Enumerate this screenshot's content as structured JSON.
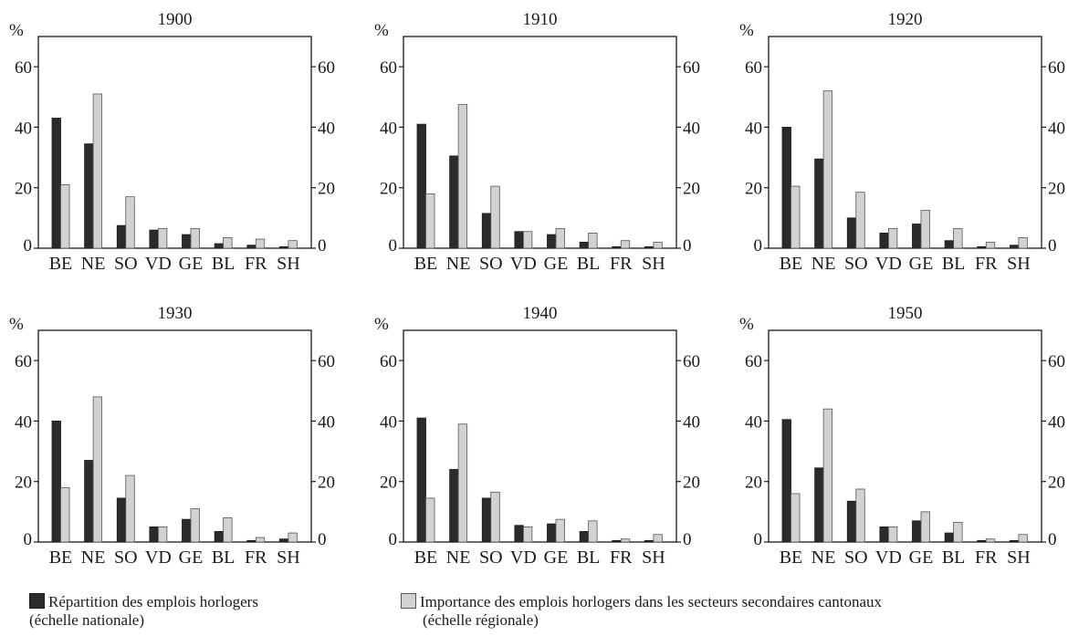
{
  "chart_data": [
    {
      "type": "bar",
      "title": "1900",
      "categories": [
        "BE",
        "NE",
        "SO",
        "VD",
        "GE",
        "BL",
        "FR",
        "SH"
      ],
      "y_left_label": "%",
      "ylim": [
        0,
        70
      ],
      "yticks": [
        0,
        20,
        40,
        60
      ],
      "series": [
        {
          "name": "Répartition des emplois horlogers (échelle nationale)",
          "color": "#2b2b2b",
          "values": [
            43,
            34.5,
            7.5,
            6,
            4.5,
            1.5,
            1,
            0.5
          ]
        },
        {
          "name": "Importance des emplois horlogers dans les secteurs secondaires cantonaux (échelle régionale)",
          "color": "#d2d2d2",
          "values": [
            21,
            51,
            17,
            6.5,
            6.5,
            3.5,
            3,
            2.5
          ]
        }
      ]
    },
    {
      "type": "bar",
      "title": "1910",
      "categories": [
        "BE",
        "NE",
        "SO",
        "VD",
        "GE",
        "BL",
        "FR",
        "SH"
      ],
      "y_left_label": "%",
      "ylim": [
        0,
        70
      ],
      "yticks": [
        0,
        20,
        40,
        60
      ],
      "series": [
        {
          "name": "Répartition des emplois horlogers (échelle nationale)",
          "color": "#2b2b2b",
          "values": [
            41,
            30.5,
            11.5,
            5.5,
            4.5,
            2,
            0.5,
            0.5
          ]
        },
        {
          "name": "Importance des emplois horlogers dans les secteurs secondaires cantonaux (échelle régionale)",
          "color": "#d2d2d2",
          "values": [
            18,
            47.5,
            20.5,
            5.5,
            6.5,
            5,
            2.5,
            2
          ]
        }
      ]
    },
    {
      "type": "bar",
      "title": "1920",
      "categories": [
        "BE",
        "NE",
        "SO",
        "VD",
        "GE",
        "BL",
        "FR",
        "SH"
      ],
      "y_left_label": "%",
      "ylim": [
        0,
        70
      ],
      "yticks": [
        0,
        20,
        40,
        60
      ],
      "series": [
        {
          "name": "Répartition des emplois horlogers (échelle nationale)",
          "color": "#2b2b2b",
          "values": [
            40,
            29.5,
            10,
            5,
            8,
            2.5,
            0.5,
            1
          ]
        },
        {
          "name": "Importance des emplois horlogers dans les secteurs secondaires cantonaux (échelle régionale)",
          "color": "#d2d2d2",
          "values": [
            20.5,
            52,
            18.5,
            6.5,
            12.5,
            6.5,
            2,
            3.5
          ]
        }
      ]
    },
    {
      "type": "bar",
      "title": "1930",
      "categories": [
        "BE",
        "NE",
        "SO",
        "VD",
        "GE",
        "BL",
        "FR",
        "SH"
      ],
      "y_left_label": "%",
      "ylim": [
        0,
        70
      ],
      "yticks": [
        0,
        20,
        40,
        60
      ],
      "series": [
        {
          "name": "Répartition des emplois horlogers (échelle nationale)",
          "color": "#2b2b2b",
          "values": [
            40,
            27,
            14.5,
            5,
            7.5,
            3.5,
            0.5,
            1
          ]
        },
        {
          "name": "Importance des emplois horlogers dans les secteurs secondaires cantonaux (échelle régionale)",
          "color": "#d2d2d2",
          "values": [
            18,
            48,
            22,
            5,
            11,
            8,
            1.5,
            3
          ]
        }
      ]
    },
    {
      "type": "bar",
      "title": "1940",
      "categories": [
        "BE",
        "NE",
        "SO",
        "VD",
        "GE",
        "BL",
        "FR",
        "SH"
      ],
      "y_left_label": "%",
      "ylim": [
        0,
        70
      ],
      "yticks": [
        0,
        20,
        40,
        60
      ],
      "series": [
        {
          "name": "Répartition des emplois horlogers (échelle nationale)",
          "color": "#2b2b2b",
          "values": [
            41,
            24,
            14.5,
            5.5,
            6,
            3.5,
            0.5,
            0.5
          ]
        },
        {
          "name": "Importance des emplois horlogers dans les secteurs secondaires cantonaux (échelle régionale)",
          "color": "#d2d2d2",
          "values": [
            14.5,
            39,
            16.5,
            5,
            7.5,
            7,
            1,
            2.5
          ]
        }
      ]
    },
    {
      "type": "bar",
      "title": "1950",
      "categories": [
        "BE",
        "NE",
        "SO",
        "VD",
        "GE",
        "BL",
        "FR",
        "SH"
      ],
      "y_left_label": "%",
      "ylim": [
        0,
        70
      ],
      "yticks": [
        0,
        20,
        40,
        60
      ],
      "series": [
        {
          "name": "Répartition des emplois horlogers (échelle nationale)",
          "color": "#2b2b2b",
          "values": [
            40.5,
            24.5,
            13.5,
            5,
            7,
            3,
            0.5,
            0.5
          ]
        },
        {
          "name": "Importance des emplois horlogers dans les secteurs secondaires cantonaux (échelle régionale)",
          "color": "#d2d2d2",
          "values": [
            16,
            44,
            17.5,
            5,
            10,
            6.5,
            1,
            2.5
          ]
        }
      ]
    }
  ],
  "legend": {
    "national_line1": "Répartition des emplois horlogers",
    "national_line2": "(échelle nationale)",
    "regional_line1": "Importance des emplois horlogers dans les secteurs secondaires cantonaux",
    "regional_line2": "(échelle régionale)"
  }
}
